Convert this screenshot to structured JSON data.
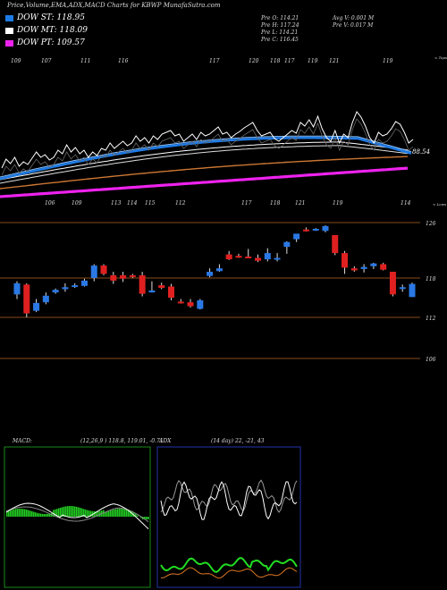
{
  "header": {
    "title": "Price,Volume,EMA,ADX,MACD Charts for KBWP MunafaSutra.com",
    "legend": [
      {
        "label": "DOW ST: 118.95",
        "color": "#1e7be6"
      },
      {
        "label": "DOW MT: 118.09",
        "color": "#ffffff"
      },
      {
        "label": "DOW PT: 109.57",
        "color": "#ee22ee"
      }
    ],
    "quote": {
      "open": "Pre  O: 114.21",
      "high": "Pre  H: 117.24",
      "low": "Pre  L: 114.21",
      "close": "Pre  C: 116.45",
      "avg_vol": "Avg V: 0.001 M",
      "pre_vol": "Pre  V: 0.017 M"
    }
  },
  "ema_panel": {
    "top_values": [
      "109",
      "107",
      "111",
      "116",
      "117",
      "120",
      "118",
      "117",
      "119",
      "121",
      "119"
    ],
    "bottom_values": [
      "106",
      "109",
      "113",
      "114",
      "115",
      "112",
      "117",
      "118",
      "121",
      "119",
      "114"
    ],
    "top_label": "< Tops",
    "bottom_label": "< Lows",
    "last_value": "88.54",
    "colors": {
      "price": "#ffffff",
      "st": "#1e7be6",
      "mt": "#ffffff",
      "lt": "#cc7733",
      "pt": "#ee22ee"
    }
  },
  "chart_data": {
    "type": "candlestick",
    "y_ticks": [
      "126",
      "118",
      "112",
      "106"
    ],
    "y_tick_values": [
      126,
      118,
      112,
      106
    ],
    "ylim": [
      104.5,
      127.5
    ],
    "candles": [
      {
        "o": 115.5,
        "h": 117.5,
        "l": 114.8,
        "c": 117.2,
        "up": true
      },
      {
        "o": 117.0,
        "h": 117.2,
        "l": 112.0,
        "c": 112.6,
        "up": false
      },
      {
        "o": 113.0,
        "h": 114.8,
        "l": 112.8,
        "c": 114.2,
        "up": true
      },
      {
        "o": 114.3,
        "h": 115.8,
        "l": 114.0,
        "c": 115.3,
        "up": true
      },
      {
        "o": 115.8,
        "h": 116.4,
        "l": 115.6,
        "c": 116.2,
        "up": true
      },
      {
        "o": 116.3,
        "h": 117.2,
        "l": 115.9,
        "c": 116.6,
        "up": true
      },
      {
        "o": 116.7,
        "h": 117.2,
        "l": 116.5,
        "c": 116.9,
        "up": true
      },
      {
        "o": 116.8,
        "h": 117.9,
        "l": 116.7,
        "c": 117.6,
        "up": true
      },
      {
        "o": 119.8,
        "h": 120.0,
        "l": 117.5,
        "c": 118.0,
        "up": true
      },
      {
        "o": 119.8,
        "h": 120.0,
        "l": 118.4,
        "c": 118.6,
        "up": false
      },
      {
        "o": 118.4,
        "h": 118.9,
        "l": 117.1,
        "c": 117.6,
        "up": false
      },
      {
        "o": 118.4,
        "h": 118.9,
        "l": 117.4,
        "c": 117.9,
        "up": false
      },
      {
        "o": 118.4,
        "h": 118.6,
        "l": 118.0,
        "c": 118.2,
        "up": false
      },
      {
        "o": 118.4,
        "h": 118.9,
        "l": 115.2,
        "c": 115.6,
        "up": false
      },
      {
        "o": 115.8,
        "h": 117.5,
        "l": 115.8,
        "c": 116.1,
        "up": true
      },
      {
        "o": 116.9,
        "h": 117.3,
        "l": 116.3,
        "c": 116.5,
        "up": false
      },
      {
        "o": 116.7,
        "h": 117.1,
        "l": 114.6,
        "c": 115.0,
        "up": false
      },
      {
        "o": 114.4,
        "h": 114.8,
        "l": 114.1,
        "c": 114.2,
        "up": false
      },
      {
        "o": 114.3,
        "h": 114.8,
        "l": 113.5,
        "c": 113.7,
        "up": false
      },
      {
        "o": 113.3,
        "h": 114.8,
        "l": 113.2,
        "c": 114.6,
        "up": true
      },
      {
        "o": 118.3,
        "h": 119.4,
        "l": 118.1,
        "c": 118.9,
        "up": true
      },
      {
        "o": 119.0,
        "h": 120.0,
        "l": 118.9,
        "c": 119.4,
        "up": true
      },
      {
        "o": 121.4,
        "h": 121.9,
        "l": 120.6,
        "c": 120.7,
        "up": false
      },
      {
        "o": 121.1,
        "h": 121.5,
        "l": 120.9,
        "c": 121.2,
        "up": false
      },
      {
        "o": 121.1,
        "h": 122.2,
        "l": 120.9,
        "c": 121.0,
        "up": false
      },
      {
        "o": 120.9,
        "h": 121.4,
        "l": 120.3,
        "c": 120.5,
        "up": false
      },
      {
        "o": 121.6,
        "h": 122.3,
        "l": 120.4,
        "c": 120.7,
        "up": true
      },
      {
        "o": 120.9,
        "h": 121.6,
        "l": 120.4,
        "c": 120.7,
        "up": true
      },
      {
        "o": 122.5,
        "h": 123.3,
        "l": 121.5,
        "c": 123.2,
        "up": true
      },
      {
        "o": 123.6,
        "h": 124.3,
        "l": 123.2,
        "c": 124.4,
        "up": true
      },
      {
        "o": 125.0,
        "h": 125.3,
        "l": 124.7,
        "c": 125.0,
        "up": false
      },
      {
        "o": 125.0,
        "h": 125.2,
        "l": 124.8,
        "c": 125.1,
        "up": true
      },
      {
        "o": 125.5,
        "h": 125.6,
        "l": 124.6,
        "c": 124.8,
        "up": true
      },
      {
        "o": 124.2,
        "h": 124.2,
        "l": 121.3,
        "c": 121.6,
        "up": false
      },
      {
        "o": 121.6,
        "h": 121.9,
        "l": 118.6,
        "c": 119.5,
        "up": false
      },
      {
        "o": 119.4,
        "h": 119.7,
        "l": 118.9,
        "c": 119.1,
        "up": false
      },
      {
        "o": 119.3,
        "h": 120.0,
        "l": 118.8,
        "c": 119.6,
        "up": true
      },
      {
        "o": 119.7,
        "h": 120.2,
        "l": 119.3,
        "c": 120.1,
        "up": true
      },
      {
        "o": 120.0,
        "h": 120.2,
        "l": 119.1,
        "c": 119.2,
        "up": false
      },
      {
        "o": 118.9,
        "h": 118.9,
        "l": 115.2,
        "c": 115.5,
        "up": false
      },
      {
        "o": 116.4,
        "h": 117.0,
        "l": 115.9,
        "c": 116.6,
        "up": true
      },
      {
        "o": 115.1,
        "h": 117.3,
        "l": 115.1,
        "c": 117.1,
        "up": true
      }
    ]
  },
  "indicators": {
    "macd_label": "MACD:",
    "macd_values": "(12,26,9 ) 118.8,  119.01, -0.71",
    "adx_label": "ADX",
    "adx_values": "(14  day) 22,  -21,  43"
  }
}
